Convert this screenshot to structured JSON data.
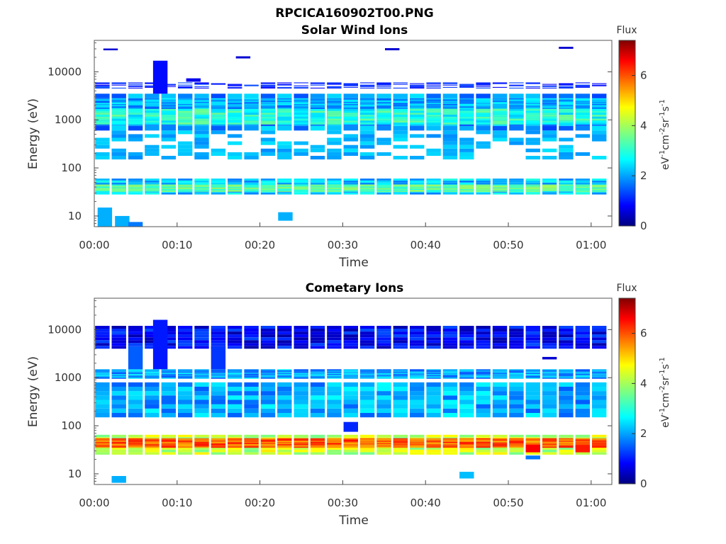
{
  "figure": {
    "filename_title": "RPCICA160902T00.PNG"
  },
  "colorbar": {
    "label": "Flux",
    "units_parts": [
      "eV",
      "-1",
      "cm",
      "-2",
      "sr",
      "-1",
      "s",
      "-1"
    ],
    "ticks": [
      "0",
      "2",
      "4",
      "6"
    ],
    "range": [
      0,
      7.4
    ],
    "colormap": "jet"
  },
  "chart_data": [
    {
      "type": "heatmap",
      "title": "Solar Wind Ions",
      "xlabel": "Time",
      "ylabel": "Energy (eV)",
      "y_scale": "log",
      "ylim": [
        6,
        45000
      ],
      "xlim_minutes": [
        0,
        62.5
      ],
      "x_ticks": [
        "00:00",
        "00:10",
        "00:20",
        "00:30",
        "00:40",
        "00:50",
        "01:00"
      ],
      "y_ticks": [
        "10",
        "100",
        "1000",
        "10000"
      ],
      "grid": false,
      "sweep_minutes": [
        0.1,
        2.1,
        4.1,
        6.1,
        8.1,
        10.1,
        12.1,
        14.1,
        16.1,
        18.1,
        20.1,
        22.1,
        24.1,
        26.1,
        28.1,
        30.1,
        32.1,
        34.1,
        36.1,
        38.1,
        40.1,
        42.1,
        44.1,
        46.1,
        48.1,
        50.1,
        52.1,
        54.1,
        56.1,
        58.1,
        60.1
      ],
      "bands": [
        {
          "e_low": 600,
          "e_high": 3500,
          "flux": 2.0
        },
        {
          "e_low": 800,
          "e_high": 1700,
          "flux": 3.0
        },
        {
          "e_low": 1800,
          "e_high": 2800,
          "flux": 2.2
        },
        {
          "e_low": 28,
          "e_high": 60,
          "flux": 2.4
        },
        {
          "e_low": 32,
          "e_high": 45,
          "flux": 3.5
        },
        {
          "e_low": 4500,
          "e_high": 6000,
          "flux": 0.9
        },
        {
          "e_low": 150,
          "e_high": 600,
          "flux": 2.0
        }
      ],
      "extra_cells": [
        {
          "t": 7.1,
          "e_low": 3500,
          "e_high": 17000,
          "flux": 1.0
        },
        {
          "t": 0.4,
          "e_low": 6,
          "e_high": 15,
          "flux": 2.2
        },
        {
          "t": 2.5,
          "e_low": 6,
          "e_high": 10,
          "flux": 2.2
        },
        {
          "t": 22.2,
          "e_low": 8,
          "e_high": 12,
          "flux": 2.2
        },
        {
          "t": 4.1,
          "e_low": 6,
          "e_high": 7.5,
          "flux": 1.8
        },
        {
          "t": 11.1,
          "e_low": 6200,
          "e_high": 7300,
          "flux": 0.8
        },
        {
          "t": 35.1,
          "e_low": 28000,
          "e_high": 31000,
          "flux": 0.6
        },
        {
          "t": 56.1,
          "e_low": 30000,
          "e_high": 33000,
          "flux": 0.6
        },
        {
          "t": 1.1,
          "e_low": 28000,
          "e_high": 30500,
          "flux": 0.6
        },
        {
          "t": 17.1,
          "e_low": 19000,
          "e_high": 21000,
          "flux": 0.6
        }
      ]
    },
    {
      "type": "heatmap",
      "title": "Cometary Ions",
      "xlabel": "Time",
      "ylabel": "Energy (eV)",
      "y_scale": "log",
      "ylim": [
        6,
        45000
      ],
      "xlim_minutes": [
        0,
        62.5
      ],
      "x_ticks": [
        "00:00",
        "00:10",
        "00:20",
        "00:30",
        "00:40",
        "00:50",
        "01:00"
      ],
      "y_ticks": [
        "10",
        "100",
        "1000",
        "10000"
      ],
      "grid": false,
      "sweep_minutes": [
        0.1,
        2.1,
        4.1,
        6.1,
        8.1,
        10.1,
        12.1,
        14.1,
        16.1,
        18.1,
        20.1,
        22.1,
        24.1,
        26.1,
        28.1,
        30.1,
        32.1,
        34.1,
        36.1,
        38.1,
        40.1,
        42.1,
        44.1,
        46.1,
        48.1,
        50.1,
        52.1,
        54.1,
        56.1,
        58.1,
        60.1
      ],
      "bands": [
        {
          "e_low": 950,
          "e_high": 1500,
          "flux": 2.1
        },
        {
          "e_low": 25,
          "e_high": 65,
          "flux": 4.2
        },
        {
          "e_low": 35,
          "e_high": 55,
          "flux": 5.8
        },
        {
          "e_low": 150,
          "e_high": 800,
          "flux": 2.2
        },
        {
          "e_low": 4000,
          "e_high": 12000,
          "flux": 0.9
        }
      ],
      "extra_cells": [
        {
          "t": 7.1,
          "e_low": 1500,
          "e_high": 16000,
          "flux": 1.1
        },
        {
          "t": 4.1,
          "e_low": 1500,
          "e_high": 4500,
          "flux": 1.6
        },
        {
          "t": 14.1,
          "e_low": 1500,
          "e_high": 4500,
          "flux": 1.3
        },
        {
          "t": 2.1,
          "e_low": 6.5,
          "e_high": 9,
          "flux": 2.2
        },
        {
          "t": 44.1,
          "e_low": 8,
          "e_high": 11,
          "flux": 2.3
        },
        {
          "t": 52.1,
          "e_low": 28,
          "e_high": 40,
          "flux": 6.5
        },
        {
          "t": 58.1,
          "e_low": 28,
          "e_high": 40,
          "flux": 6.3
        },
        {
          "t": 52.1,
          "e_low": 20,
          "e_high": 24,
          "flux": 1.8
        },
        {
          "t": 54.1,
          "e_low": 2400,
          "e_high": 2700,
          "flux": 0.6
        },
        {
          "t": 30.1,
          "e_low": 75,
          "e_high": 120,
          "flux": 1.2
        }
      ]
    }
  ]
}
